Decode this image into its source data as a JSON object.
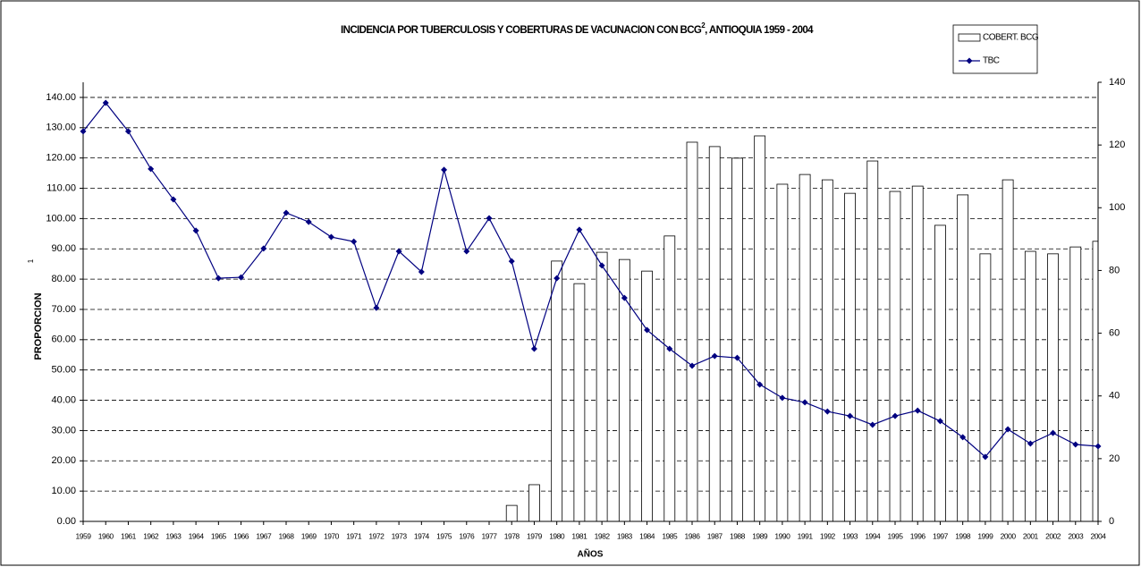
{
  "chart_data": {
    "type": "bar_line",
    "title_main": "INCIDENCIA POR TUBERCULOSIS Y  COBERTURAS DE VACUNACION CON BCG",
    "title_sup": "2",
    "title_end": ", ANTIOQUIA 1959 - 2004",
    "x_label": "AÑOS",
    "y_label": "PROPORCION",
    "y_label_note": "1",
    "categories": [
      "1959",
      "1960",
      "1961",
      "1962",
      "1963",
      "1964",
      "1965",
      "1966",
      "1967",
      "1968",
      "1969",
      "1970",
      "1971",
      "1972",
      "1973",
      "1974",
      "1975",
      "1976",
      "1977",
      "1978",
      "1979",
      "1980",
      "1981",
      "1982",
      "1983",
      "1984",
      "1985",
      "1986",
      "1987",
      "1988",
      "1989",
      "1990",
      "1991",
      "1992",
      "1993",
      "1994",
      "1995",
      "1996",
      "1997",
      "1998",
      "1999",
      "2000",
      "2001",
      "2002",
      "2003",
      "2004"
    ],
    "series": [
      {
        "name": "COBERT. BCG",
        "type": "bar",
        "axis": "y2",
        "color": "#ffffff",
        "values": [
          null,
          null,
          null,
          null,
          null,
          null,
          null,
          null,
          null,
          null,
          null,
          null,
          null,
          null,
          null,
          null,
          null,
          null,
          null,
          5.1,
          11.7,
          83.0,
          75.8,
          85.8,
          83.5,
          79.8,
          91.0,
          120.9,
          119.5,
          115.8,
          122.9,
          107.5,
          110.6,
          108.9,
          104.6,
          114.9,
          105.2,
          106.9,
          94.4,
          104.1,
          85.3,
          108.9,
          86.1,
          85.3,
          87.5,
          89.3
        ]
      },
      {
        "name": "TBC",
        "type": "line",
        "axis": "y",
        "color": "#000080",
        "values": [
          128.8,
          138.2,
          128.8,
          116.4,
          106.3,
          96.0,
          80.3,
          80.6,
          90.1,
          101.9,
          98.9,
          93.9,
          92.4,
          70.5,
          89.2,
          82.4,
          116.1,
          89.2,
          100.1,
          85.9,
          57.0,
          80.3,
          96.3,
          84.5,
          73.8,
          63.2,
          57.0,
          51.4,
          54.6,
          54.0,
          45.2,
          40.8,
          39.3,
          36.3,
          34.8,
          31.9,
          34.8,
          36.6,
          33.1,
          27.8,
          21.3,
          30.4,
          25.7,
          29.2,
          25.4,
          24.8
        ]
      }
    ],
    "ylim": [
      0,
      145
    ],
    "yticks": [
      {
        "value": 0,
        "label": "0.00"
      },
      {
        "value": 10,
        "label": "10.00"
      },
      {
        "value": 20,
        "label": "20.00"
      },
      {
        "value": 30,
        "label": "30.00"
      },
      {
        "value": 40,
        "label": "40.00"
      },
      {
        "value": 50,
        "label": "50.00"
      },
      {
        "value": 60,
        "label": "60.00"
      },
      {
        "value": 70,
        "label": "70.00"
      },
      {
        "value": 80,
        "label": "80.00"
      },
      {
        "value": 90,
        "label": "90.00"
      },
      {
        "value": 100,
        "label": "100.00"
      },
      {
        "value": 110,
        "label": "110.00"
      },
      {
        "value": 120,
        "label": "120.00"
      },
      {
        "value": 130,
        "label": "130.00"
      },
      {
        "value": 140,
        "label": "140.00"
      }
    ],
    "y2lim": [
      0,
      140
    ],
    "y2ticks": [
      0,
      20,
      40,
      60,
      80,
      100,
      120,
      140
    ],
    "grid": true,
    "legend": "top-right"
  }
}
